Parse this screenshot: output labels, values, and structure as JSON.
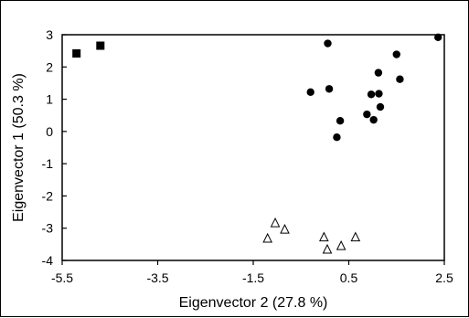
{
  "chart_data": {
    "type": "scatter",
    "title": "",
    "xlabel": "Eigenvector 2 (27.8 %)",
    "ylabel": "Eigenvector 1 (50.3 %)",
    "xlim": [
      -5.5,
      2.5
    ],
    "ylim": [
      -4,
      3
    ],
    "xticks": [
      -5.5,
      -3.5,
      -1.5,
      0.5,
      2.5
    ],
    "yticks": [
      -4,
      -3,
      -2,
      -1,
      0,
      1,
      2,
      3
    ],
    "xtick_labels": [
      "-5.5",
      "-3.5",
      "-1.5",
      "0.5",
      "2.5"
    ],
    "ytick_labels": [
      "-4",
      "-3",
      "-2",
      "-1",
      "0",
      "1",
      "2",
      "3"
    ],
    "grid": false,
    "legend": "none",
    "series": [
      {
        "marker": "square",
        "color": "#000000",
        "points": [
          [
            -5.2,
            2.42
          ],
          [
            -4.7,
            2.66
          ]
        ]
      },
      {
        "marker": "circle",
        "color": "#000000",
        "points": [
          [
            -0.3,
            1.22
          ],
          [
            0.06,
            2.73
          ],
          [
            0.09,
            1.32
          ],
          [
            0.25,
            -0.18
          ],
          [
            0.32,
            0.33
          ],
          [
            0.88,
            0.53
          ],
          [
            0.97,
            1.15
          ],
          [
            1.02,
            0.36
          ],
          [
            1.12,
            1.82
          ],
          [
            1.13,
            1.17
          ],
          [
            1.16,
            0.76
          ],
          [
            1.5,
            2.39
          ],
          [
            1.57,
            1.62
          ],
          [
            2.37,
            2.92
          ]
        ]
      },
      {
        "marker": "triangle-open",
        "color": "#000000",
        "points": [
          [
            -1.2,
            -3.32
          ],
          [
            -1.04,
            -2.84
          ],
          [
            -0.84,
            -3.04
          ],
          [
            -0.02,
            -3.28
          ],
          [
            0.05,
            -3.66
          ],
          [
            0.34,
            -3.55
          ],
          [
            0.64,
            -3.28
          ]
        ]
      }
    ]
  }
}
